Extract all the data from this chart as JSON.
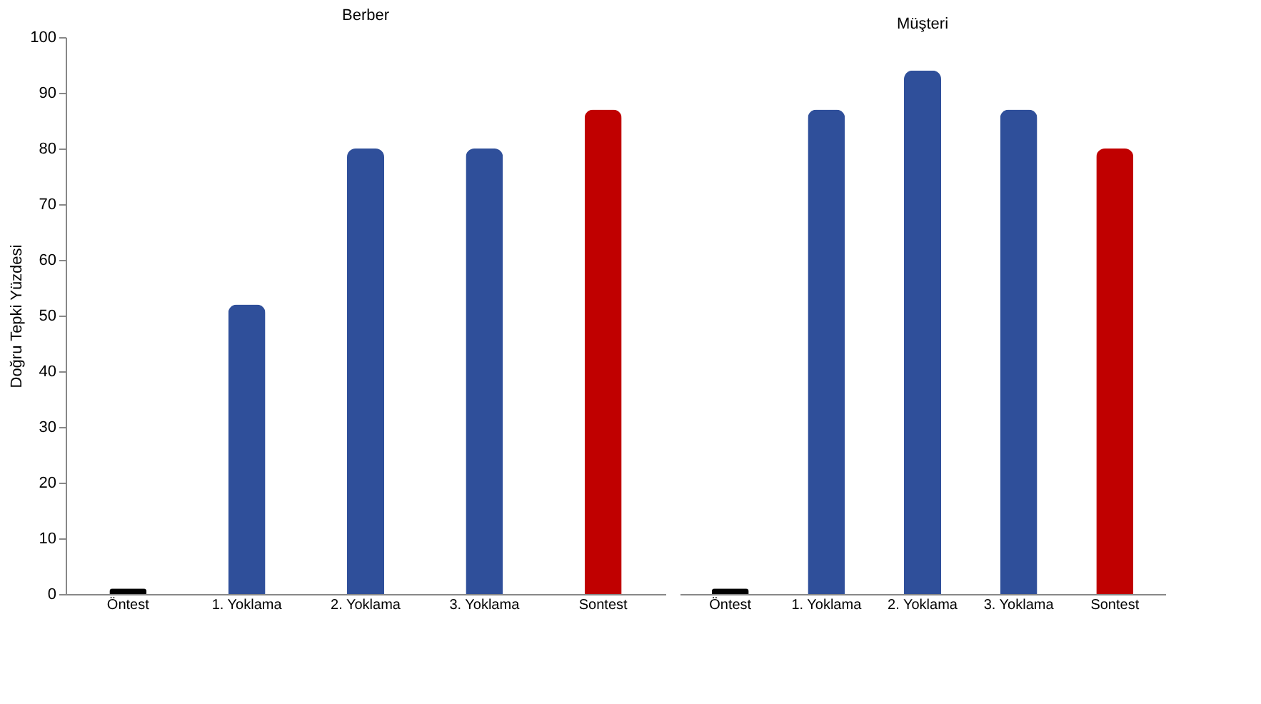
{
  "chart_data": [
    {
      "type": "bar",
      "title": "Berber",
      "ylabel": "Doğru Tepki Yüzdesi",
      "categories": [
        "Öntest",
        "1. Yoklama",
        "2. Yoklama",
        "3. Yoklama",
        "Sontest"
      ],
      "values": [
        1,
        52,
        80,
        80,
        87
      ],
      "colors": [
        "#000000",
        "#2f4f9a",
        "#2f4f9a",
        "#2f4f9a",
        "#c00000"
      ],
      "ylim": [
        0,
        100
      ],
      "yticks": [
        0,
        10,
        20,
        30,
        40,
        50,
        60,
        70,
        80,
        90,
        100
      ],
      "grid": false
    },
    {
      "type": "bar",
      "title": "Müşteri",
      "categories": [
        "Öntest",
        "1. Yoklama",
        "2. Yoklama",
        "3. Yoklama",
        "Sontest"
      ],
      "values": [
        1,
        87,
        94,
        87,
        80
      ],
      "colors": [
        "#000000",
        "#2f4f9a",
        "#2f4f9a",
        "#2f4f9a",
        "#c00000"
      ],
      "ylim": [
        0,
        100
      ],
      "yticks": [
        0,
        10,
        20,
        30,
        40,
        50,
        60,
        70,
        80,
        90,
        100
      ],
      "tick_labels": "x",
      "grid": false
    }
  ]
}
